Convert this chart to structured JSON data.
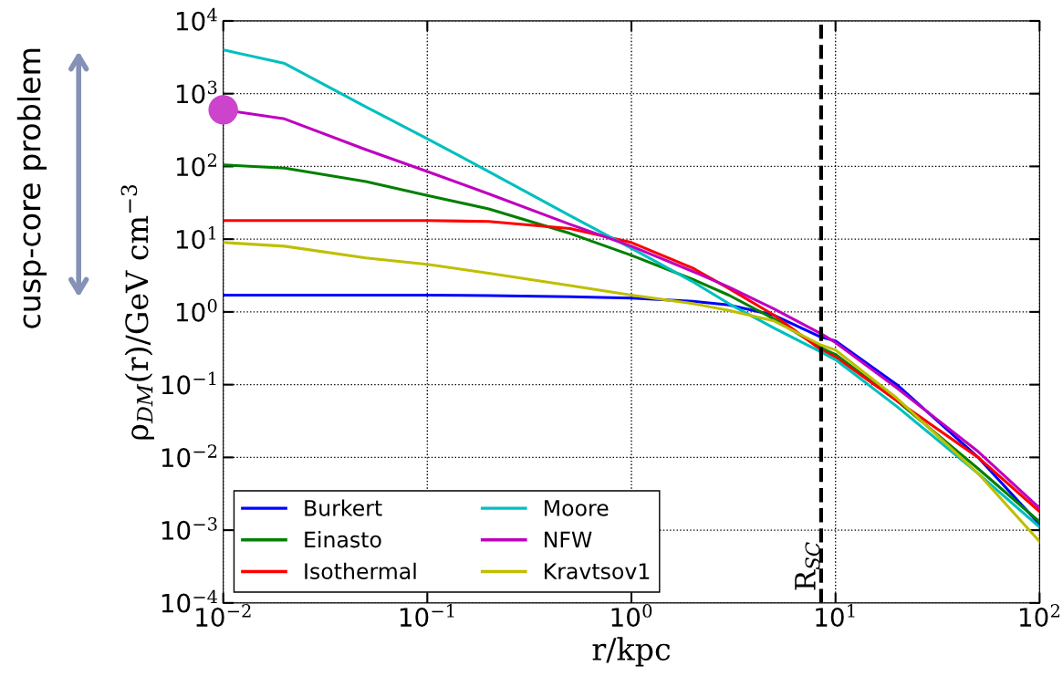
{
  "chart_data": {
    "type": "line",
    "xlabel": "r/kpc",
    "ylabel": "ρ$_{DM}$(r)/GeV cm$^{−3}$",
    "log": "xy",
    "grid": true,
    "legend": "bottom left",
    "line_style": "solid",
    "x": [
      0.01,
      0.02,
      0.05,
      0.1,
      0.2,
      0.5,
      1,
      2,
      3,
      5,
      8.5,
      10,
      20,
      50,
      100
    ],
    "xlim": [
      0.01,
      100
    ],
    "ylim": [
      0.0001,
      10000
    ],
    "xticks": [
      {
        "value": 0.01,
        "label": "10$^{−2}$"
      },
      {
        "value": 0.1,
        "label": "10$^{−1}$"
      },
      {
        "value": 1,
        "label": "10$^{0}$"
      },
      {
        "value": 10,
        "label": "10$^{1}$"
      },
      {
        "value": 100,
        "label": "10$^{2}$"
      }
    ],
    "yticks": [
      {
        "value": 0.0001,
        "label": "10$^{−4}$"
      },
      {
        "value": 0.001,
        "label": "10$^{−3}$"
      },
      {
        "value": 0.01,
        "label": "10$^{−2}$"
      },
      {
        "value": 0.1,
        "label": "10$^{−1}$"
      },
      {
        "value": 1,
        "label": "10$^{0}$"
      },
      {
        "value": 10,
        "label": "10$^{1}$"
      },
      {
        "value": 100,
        "label": "10$^{2}$"
      },
      {
        "value": 1000,
        "label": "10$^{3}$"
      },
      {
        "value": 10000,
        "label": "10$^{4}$"
      }
    ],
    "series": [
      {
        "name": "Burkert",
        "color": "#0000ff",
        "values": [
          1.7,
          1.7,
          1.7,
          1.7,
          1.68,
          1.62,
          1.55,
          1.4,
          1.25,
          0.9,
          0.45,
          0.4,
          0.1,
          0.01,
          0.0012
        ]
      },
      {
        "name": "Einasto",
        "color": "#008000",
        "values": [
          105,
          95,
          62,
          40,
          26,
          12,
          6,
          2.8,
          1.7,
          0.8,
          0.32,
          0.26,
          0.06,
          0.007,
          0.0013
        ]
      },
      {
        "name": "Isothermal",
        "color": "#ff0000",
        "values": [
          18,
          18,
          18,
          18,
          17.5,
          14,
          9,
          4,
          2.1,
          0.9,
          0.3,
          0.24,
          0.06,
          0.01,
          0.0018
        ]
      },
      {
        "name": "Moore",
        "color": "#00bfbf",
        "values": [
          4000,
          2600,
          660,
          240,
          85,
          21,
          7.5,
          2.6,
          1.3,
          0.6,
          0.28,
          0.22,
          0.05,
          0.006,
          0.0011
        ]
      },
      {
        "name": "NFW",
        "color": "#bf00bf",
        "values": [
          600,
          450,
          170,
          85,
          42,
          16,
          8,
          3.6,
          2.2,
          1.1,
          0.5,
          0.38,
          0.09,
          0.012,
          0.002
        ]
      },
      {
        "name": "Kravtsov1",
        "color": "#bfbf00",
        "values": [
          9,
          8,
          5.5,
          4.5,
          3.4,
          2.3,
          1.7,
          1.3,
          1.05,
          0.75,
          0.35,
          0.3,
          0.065,
          0.006,
          0.0007
        ]
      },
      {
        "type": "scatter",
        "color": "#cc44cc",
        "x": [
          0.01
        ],
        "values": [
          600
        ]
      }
    ],
    "ref_lines": [
      {
        "axis": "x",
        "value": 8.5,
        "label": "R$_{SC}$",
        "color": "#000000",
        "line_style": "dashed"
      }
    ],
    "annotations": [
      "cusp-core problem"
    ]
  }
}
